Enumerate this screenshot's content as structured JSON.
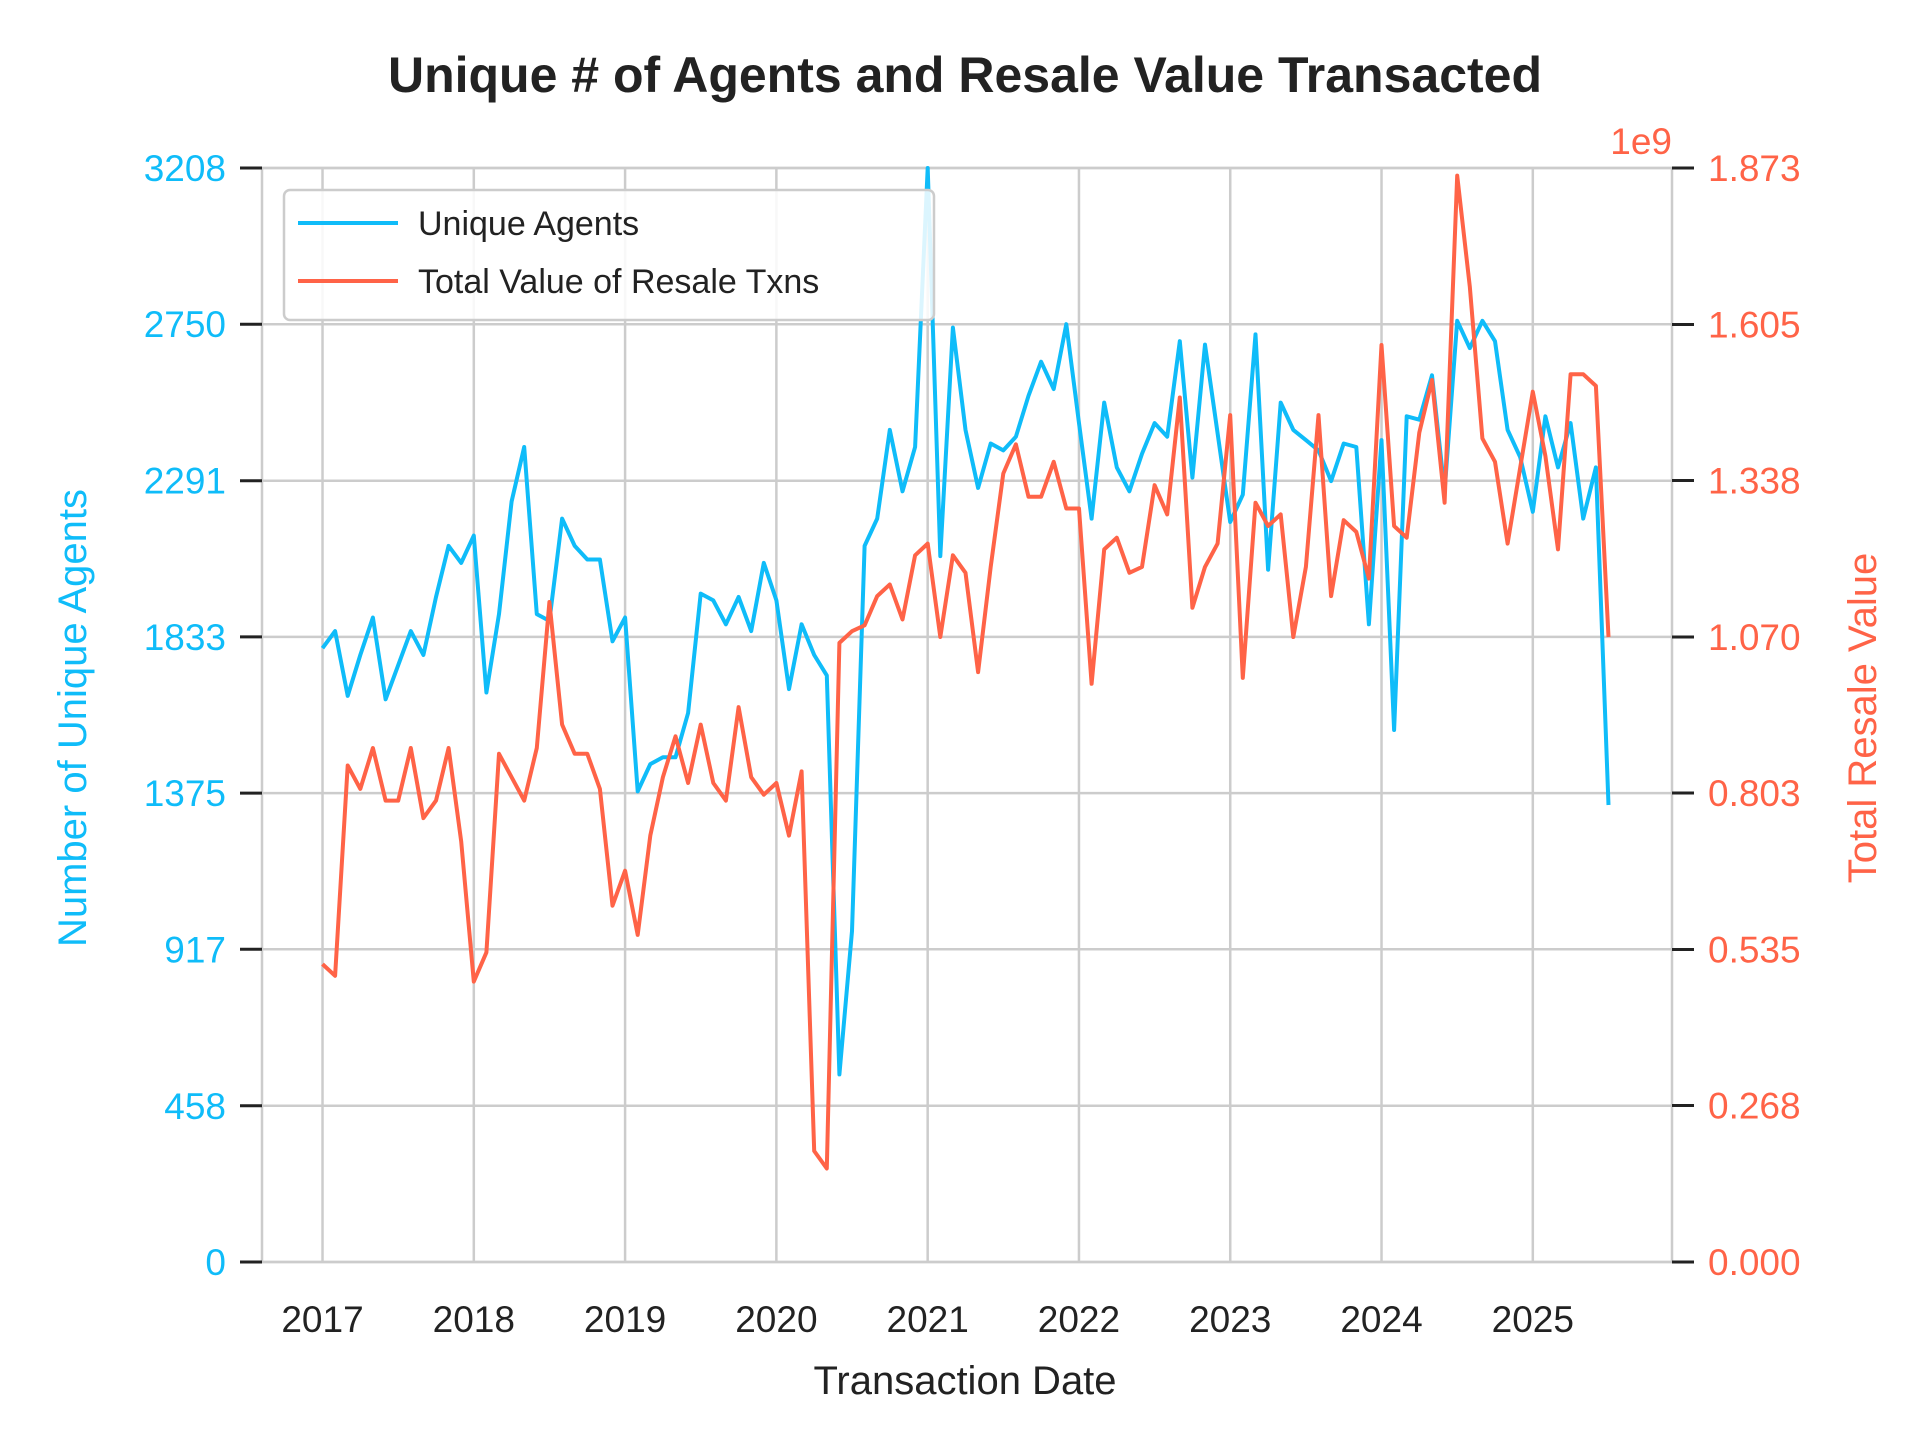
{
  "chart_data": {
    "type": "line",
    "title": "Unique # of Agents and Resale Value Transacted",
    "xlabel": "Transaction Date",
    "ylabel_left": "Number of Unique Agents",
    "ylabel_right": "Total Resale Value",
    "right_axis_multiplier": "1e9",
    "x_tick_labels": [
      "2017",
      "2018",
      "2019",
      "2020",
      "2021",
      "2022",
      "2023",
      "2024",
      "2025"
    ],
    "x_range": [
      2016.6,
      2025.92
    ],
    "y_left_ticks": [
      "0",
      "458",
      "917",
      "1375",
      "1833",
      "2291",
      "2750",
      "3208"
    ],
    "y_left_range": [
      0,
      3208
    ],
    "y_right_ticks": [
      "0.000",
      "0.268",
      "0.535",
      "0.803",
      "1.070",
      "1.338",
      "1.605",
      "1.873"
    ],
    "y_right_range": [
      0,
      1.873
    ],
    "grid": true,
    "legend_position": "top-left",
    "colors": {
      "left": "#0fbcf9",
      "right": "#ff6347",
      "text": "#222222",
      "grid": "#cccccc"
    },
    "series": [
      {
        "name": "Unique Agents",
        "axis": "left",
        "color": "#0fbcf9",
        "x_start": "2017-01",
        "values": [
          1800,
          1850,
          1660,
          1780,
          1890,
          1650,
          1750,
          1850,
          1780,
          1950,
          2100,
          2050,
          2130,
          1670,
          1900,
          2230,
          2390,
          1900,
          1880,
          2180,
          2100,
          2060,
          2060,
          1820,
          1890,
          1380,
          1460,
          1480,
          1480,
          1610,
          1960,
          1940,
          1870,
          1950,
          1850,
          2050,
          1940,
          1680,
          1870,
          1780,
          1720,
          550,
          970,
          2100,
          2180,
          2440,
          2260,
          2390,
          3208,
          2070,
          2740,
          2440,
          2270,
          2400,
          2380,
          2420,
          2540,
          2640,
          2560,
          2750,
          2460,
          2180,
          2520,
          2330,
          2260,
          2370,
          2460,
          2420,
          2700,
          2300,
          2690,
          2430,
          2170,
          2250,
          2720,
          2030,
          2520,
          2440,
          2410,
          2380,
          2290,
          2400,
          2390,
          1870,
          2410,
          1560,
          2480,
          2470,
          2600,
          2260,
          2760,
          2680,
          2760,
          2700,
          2440,
          2360,
          2200,
          2480,
          2330,
          2460,
          2180,
          2330,
          1340
        ]
      },
      {
        "name": "Total Value of Resale Txns",
        "axis": "right",
        "color": "#ff6347",
        "x_start": "2017-01",
        "values": [
          0.51,
          0.49,
          0.85,
          0.81,
          0.88,
          0.79,
          0.79,
          0.88,
          0.76,
          0.79,
          0.88,
          0.72,
          0.48,
          0.53,
          0.87,
          0.83,
          0.79,
          0.88,
          1.13,
          0.92,
          0.87,
          0.87,
          0.81,
          0.61,
          0.67,
          0.56,
          0.73,
          0.83,
          0.9,
          0.82,
          0.92,
          0.82,
          0.79,
          0.95,
          0.83,
          0.8,
          0.82,
          0.73,
          0.84,
          0.19,
          0.16,
          1.06,
          1.08,
          1.09,
          1.14,
          1.16,
          1.1,
          1.21,
          1.23,
          1.07,
          1.21,
          1.18,
          1.01,
          1.19,
          1.35,
          1.4,
          1.31,
          1.31,
          1.37,
          1.29,
          1.29,
          0.99,
          1.22,
          1.24,
          1.18,
          1.19,
          1.33,
          1.28,
          1.48,
          1.12,
          1.19,
          1.23,
          1.45,
          1.0,
          1.3,
          1.26,
          1.28,
          1.07,
          1.19,
          1.45,
          1.14,
          1.27,
          1.25,
          1.17,
          1.57,
          1.26,
          1.24,
          1.42,
          1.51,
          1.3,
          1.86,
          1.67,
          1.41,
          1.37,
          1.23,
          1.36,
          1.49,
          1.38,
          1.22,
          1.52,
          1.52,
          1.5,
          1.07
        ]
      }
    ]
  }
}
